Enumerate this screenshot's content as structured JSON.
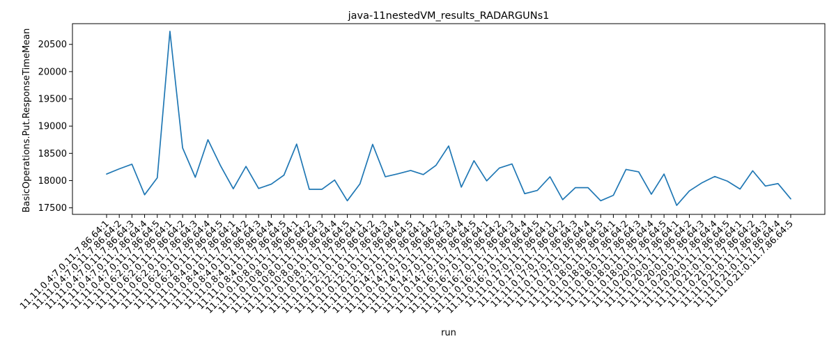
{
  "chart_data": {
    "type": "line",
    "title": "java-11nestedVM_results_RADARGUNs1",
    "xlabel": "run",
    "ylabel": "BasicOperations.Put.ResponseTimeMean",
    "ylim": [
      17380,
      20880
    ],
    "yticks": [
      17500,
      18000,
      18500,
      19000,
      19500,
      20000,
      20500
    ],
    "grid": false,
    "line_color": "#1f77b4",
    "categories": [
      "11.11.0.4:7.0.11.7.86.64:1",
      "11.11.0.4:7.0.11.7.86.64:2",
      "11.11.0.4:7.0.11.7.86.64:3",
      "11.11.0.4:7.0.11.7.86.64:4",
      "11.11.0.4:7.0.11.7.86.64:5",
      "11.11.0.6:2.0.11.7.86.64:1",
      "11.11.0.6:2.0.11.7.86.64:2",
      "11.11.0.6:2.0.11.7.86.64:3",
      "11.11.0.6:2.0.11.7.86.64:4",
      "11.11.0.6:2.0.11.7.86.64:5",
      "11.11.0.8:4.0.11.7.86.64:1",
      "11.11.0.8:4.0.11.7.86.64:2",
      "11.11.0.8:4.0.11.7.86.64:3",
      "11.11.0.8:4.0.11.7.86.64:4",
      "11.11.0.8:4.0.11.7.86.64:5",
      "11.11.0.10:8.0.11.7.86.64:1",
      "11.11.0.10:8.0.11.7.86.64:2",
      "11.11.0.10:8.0.11.7.86.64:3",
      "11.11.0.10:8.0.11.7.86.64:4",
      "11.11.0.10:8.0.11.7.86.64:5",
      "11.11.0.12:1.0.11.7.86.64:1",
      "11.11.0.12:1.0.11.7.86.64:2",
      "11.11.0.12:1.0.11.7.86.64:3",
      "11.11.0.12:1.0.11.7.86.64:4",
      "11.11.0.12:1.0.11.7.86.64:5",
      "11.11.0.14:7.0.11.7.86.64:1",
      "11.11.0.14:7.0.11.7.86.64:2",
      "11.11.0.14:7.0.11.7.86.64:3",
      "11.11.0.14:7.0.11.7.86.64:4",
      "11.11.0.14:7.0.11.7.86.64:5",
      "11.11.0.16:7.0.11.7.86.64:1",
      "11.11.0.16:7.0.11.7.86.64:2",
      "11.11.0.16:7.0.11.7.86.64:3",
      "11.11.0.16:7.0.11.7.86.64:4",
      "11.11.0.16:7.0.11.7.86.64:5",
      "11.11.0.17:0.11.7.86.64:1",
      "11.11.0.17:0.11.7.86.64:2",
      "11.11.0.17:0.11.7.86.64:3",
      "11.11.0.17:0.11.7.86.64:4",
      "11.11.0.17:0.11.7.86.64:5",
      "11.11.0.18:0.11.7.86.64:1",
      "11.11.0.18:0.11.7.86.64:2",
      "11.11.0.18:0.11.7.86.64:3",
      "11.11.0.18:0.11.7.86.64:4",
      "11.11.0.18:0.11.7.86.64:5",
      "11.11.0.20:0.11.7.86.64:1",
      "11.11.0.20:0.11.7.86.64:2",
      "11.11.0.20:0.11.7.86.64:3",
      "11.11.0.20:0.11.7.86.64:4",
      "11.11.0.20:0.11.7.86.64:5",
      "11.11.0.21:0.11.7.86.64:1",
      "11.11.0.21:0.11.7.86.64:2",
      "11.11.0.21:0.11.7.86.64:3",
      "11.11.0.21:0.11.7.86.64:4",
      "11.11.0.21:0.11.7.86.64:5"
    ],
    "values": [
      18120,
      18215,
      18300,
      17740,
      18050,
      20740,
      18600,
      18060,
      18750,
      18270,
      17850,
      18260,
      17855,
      17935,
      18100,
      18670,
      17840,
      17840,
      18010,
      17630,
      17940,
      18665,
      18070,
      18125,
      18185,
      18110,
      18280,
      18635,
      17880,
      18365,
      17995,
      18230,
      18305,
      17760,
      17820,
      18070,
      17650,
      17870,
      17870,
      17630,
      17730,
      18205,
      18160,
      17750,
      18120,
      17545,
      17810,
      17960,
      18075,
      17990,
      17845,
      18180,
      17900,
      17945,
      17665
    ]
  }
}
